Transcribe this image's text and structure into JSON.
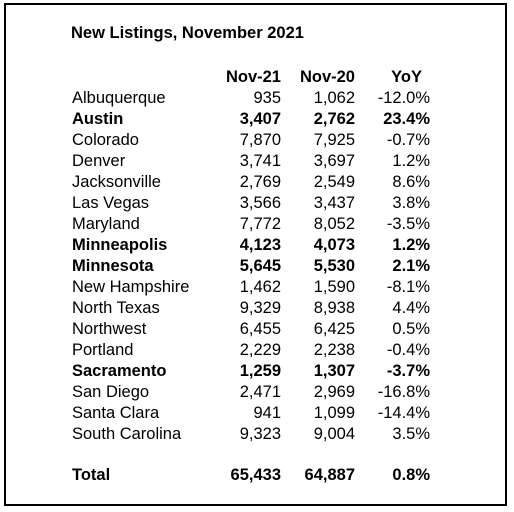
{
  "title": "New Listings, November 2021",
  "columns": [
    "Nov-21",
    "Nov-20",
    "YoY"
  ],
  "rows": [
    {
      "name": "Albuquerque",
      "nov21": "935",
      "nov20": "1,062",
      "yoy": "-12.0%",
      "bold": false
    },
    {
      "name": "Austin",
      "nov21": "3,407",
      "nov20": "2,762",
      "yoy": "23.4%",
      "bold": true
    },
    {
      "name": "Colorado",
      "nov21": "7,870",
      "nov20": "7,925",
      "yoy": "-0.7%",
      "bold": false
    },
    {
      "name": "Denver",
      "nov21": "3,741",
      "nov20": "3,697",
      "yoy": "1.2%",
      "bold": false
    },
    {
      "name": "Jacksonville",
      "nov21": "2,769",
      "nov20": "2,549",
      "yoy": "8.6%",
      "bold": false
    },
    {
      "name": "Las Vegas",
      "nov21": "3,566",
      "nov20": "3,437",
      "yoy": "3.8%",
      "bold": false
    },
    {
      "name": "Maryland",
      "nov21": "7,772",
      "nov20": "8,052",
      "yoy": "-3.5%",
      "bold": false
    },
    {
      "name": "Minneapolis",
      "nov21": "4,123",
      "nov20": "4,073",
      "yoy": "1.2%",
      "bold": true
    },
    {
      "name": "Minnesota",
      "nov21": "5,645",
      "nov20": "5,530",
      "yoy": "2.1%",
      "bold": true
    },
    {
      "name": "New Hampshire",
      "nov21": "1,462",
      "nov20": "1,590",
      "yoy": "-8.1%",
      "bold": false
    },
    {
      "name": "North Texas",
      "nov21": "9,329",
      "nov20": "8,938",
      "yoy": "4.4%",
      "bold": false
    },
    {
      "name": "Northwest",
      "nov21": "6,455",
      "nov20": "6,425",
      "yoy": "0.5%",
      "bold": false
    },
    {
      "name": "Portland",
      "nov21": "2,229",
      "nov20": "2,238",
      "yoy": "-0.4%",
      "bold": false
    },
    {
      "name": "Sacramento",
      "nov21": "1,259",
      "nov20": "1,307",
      "yoy": "-3.7%",
      "bold": true
    },
    {
      "name": "San Diego",
      "nov21": "2,471",
      "nov20": "2,969",
      "yoy": "-16.8%",
      "bold": false
    },
    {
      "name": "Santa Clara",
      "nov21": "941",
      "nov20": "1,099",
      "yoy": "-14.4%",
      "bold": false
    },
    {
      "name": "South Carolina",
      "nov21": "9,323",
      "nov20": "9,004",
      "yoy": "3.5%",
      "bold": false
    }
  ],
  "total": {
    "name": "Total",
    "nov21": "65,433",
    "nov20": "64,887",
    "yoy": "0.8%"
  }
}
